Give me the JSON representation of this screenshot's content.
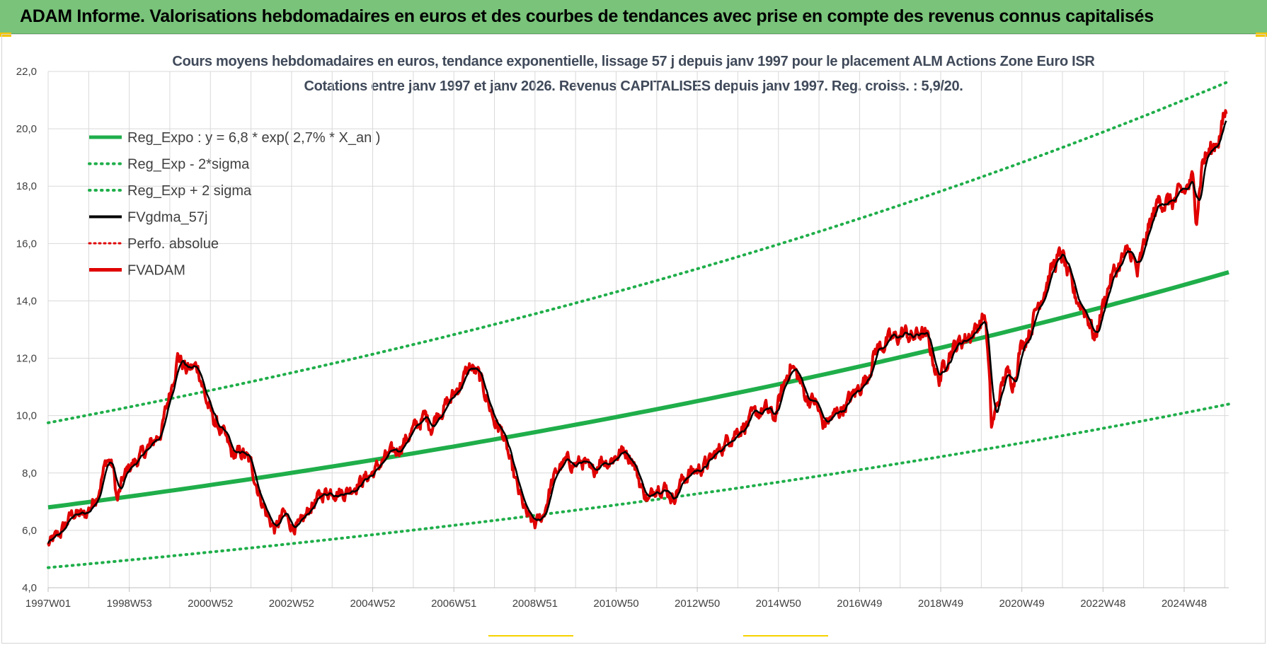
{
  "banner": {
    "title": "ADAM Informe. Valorisations hebdomadaires en euros et des courbes de tendances avec prise en compte des revenus connus capitalisés",
    "color": "#79c47a"
  },
  "chart_data": {
    "type": "line",
    "title_line1": "Cours moyens hebdomadaires en euros, tendance exponentielle, lissage 57 j depuis janv 1997 pour le placement ALM Actions Zone Euro ISR",
    "title_line2": "Cotations entre janv 1997 et janv 2026. Revenus CAPITALISES depuis janv 1997. Reg. croiss. : 5,9/20.",
    "ylim": [
      4,
      22
    ],
    "yticks": [
      "4,0",
      "6,0",
      "8,0",
      "10,0",
      "12,0",
      "14,0",
      "16,0",
      "18,0",
      "20,0",
      "22,0"
    ],
    "xlim": [
      1997.0,
      2026.1
    ],
    "xticks": [
      {
        "label": "1997W01",
        "year": 1997.0
      },
      {
        "label": "1998W53",
        "year": 1999.0
      },
      {
        "label": "2000W52",
        "year": 2001.0
      },
      {
        "label": "2002W52",
        "year": 2003.0
      },
      {
        "label": "2004W52",
        "year": 2005.0
      },
      {
        "label": "2006W51",
        "year": 2007.0
      },
      {
        "label": "2008W51",
        "year": 2009.0
      },
      {
        "label": "2010W50",
        "year": 2011.0
      },
      {
        "label": "2012W50",
        "year": 2013.0
      },
      {
        "label": "2014W50",
        "year": 2015.0
      },
      {
        "label": "2016W49",
        "year": 2017.0
      },
      {
        "label": "2018W49",
        "year": 2019.0
      },
      {
        "label": "2020W49",
        "year": 2021.0
      },
      {
        "label": "2022W48",
        "year": 2023.0
      },
      {
        "label": "2024W48",
        "year": 2025.0
      }
    ],
    "grid": true,
    "legend_position": "top-left",
    "regression": {
      "a": 6.8,
      "rate": 0.027
    },
    "series": [
      {
        "name": "Reg_Expo : y = 6,8 * exp( 2,7% *  X_an )",
        "color": "#1fae4a",
        "style": "solid-thick",
        "values": [
          [
            1997.0,
            6.8
          ],
          [
            2026.1,
            15.0
          ]
        ]
      },
      {
        "name": "Reg_Exp - 2*sigma",
        "color": "#1fae4a",
        "style": "dotted",
        "values": [
          [
            1997.0,
            4.7
          ],
          [
            2026.1,
            10.4
          ]
        ]
      },
      {
        "name": "Reg_Exp + 2 sigma",
        "color": "#1fae4a",
        "style": "dotted",
        "values": [
          [
            1997.0,
            9.75
          ],
          [
            2026.1,
            21.65
          ]
        ]
      },
      {
        "name": "FVgdma_57j",
        "color": "#000000",
        "style": "solid",
        "values": []
      },
      {
        "name": "Perfo. absolue",
        "color": "#e00000",
        "style": "dotted",
        "values": []
      },
      {
        "name": "FVADAM",
        "color": "#e00000",
        "style": "solid",
        "values": [
          [
            1997.0,
            5.5
          ],
          [
            1997.3,
            5.9
          ],
          [
            1997.6,
            6.6
          ],
          [
            1997.9,
            6.5
          ],
          [
            1998.2,
            7.2
          ],
          [
            1998.45,
            8.5
          ],
          [
            1998.6,
            8.2
          ],
          [
            1998.7,
            7.0
          ],
          [
            1998.85,
            7.8
          ],
          [
            1999.0,
            8.2
          ],
          [
            1999.3,
            8.6
          ],
          [
            1999.55,
            9.0
          ],
          [
            1999.8,
            9.5
          ],
          [
            2000.0,
            10.8
          ],
          [
            2000.2,
            12.1
          ],
          [
            2000.4,
            11.6
          ],
          [
            2000.7,
            11.7
          ],
          [
            2000.9,
            10.5
          ],
          [
            2001.1,
            9.8
          ],
          [
            2001.3,
            9.4
          ],
          [
            2001.55,
            8.6
          ],
          [
            2001.8,
            8.7
          ],
          [
            2002.0,
            8.3
          ],
          [
            2002.2,
            7.3
          ],
          [
            2002.4,
            6.5
          ],
          [
            2002.6,
            6.0
          ],
          [
            2002.8,
            6.6
          ],
          [
            2003.0,
            6.2
          ],
          [
            2003.2,
            6.1
          ],
          [
            2003.5,
            6.9
          ],
          [
            2003.8,
            7.3
          ],
          [
            2004.0,
            7.4
          ],
          [
            2004.3,
            7.3
          ],
          [
            2004.6,
            7.6
          ],
          [
            2005.0,
            8.0
          ],
          [
            2005.3,
            8.5
          ],
          [
            2005.6,
            8.8
          ],
          [
            2006.0,
            9.5
          ],
          [
            2006.3,
            10.0
          ],
          [
            2006.45,
            9.6
          ],
          [
            2006.6,
            10.1
          ],
          [
            2006.9,
            10.5
          ],
          [
            2007.2,
            11.2
          ],
          [
            2007.4,
            11.7
          ],
          [
            2007.6,
            11.4
          ],
          [
            2007.8,
            10.7
          ],
          [
            2008.0,
            9.8
          ],
          [
            2008.2,
            9.4
          ],
          [
            2008.4,
            8.3
          ],
          [
            2008.6,
            7.3
          ],
          [
            2008.8,
            6.5
          ],
          [
            2009.0,
            6.2
          ],
          [
            2009.2,
            6.5
          ],
          [
            2009.4,
            7.6
          ],
          [
            2009.6,
            8.2
          ],
          [
            2009.8,
            8.4
          ],
          [
            2010.0,
            8.3
          ],
          [
            2010.2,
            8.4
          ],
          [
            2010.4,
            7.9
          ],
          [
            2010.6,
            8.5
          ],
          [
            2010.8,
            8.4
          ],
          [
            2011.0,
            8.6
          ],
          [
            2011.2,
            8.8
          ],
          [
            2011.4,
            8.5
          ],
          [
            2011.6,
            7.6
          ],
          [
            2011.8,
            7.0
          ],
          [
            2012.0,
            7.6
          ],
          [
            2012.2,
            7.5
          ],
          [
            2012.4,
            7.1
          ],
          [
            2012.6,
            7.7
          ],
          [
            2012.8,
            8.0
          ],
          [
            2013.0,
            8.1
          ],
          [
            2013.3,
            8.4
          ],
          [
            2013.6,
            8.9
          ],
          [
            2013.9,
            9.4
          ],
          [
            2014.2,
            9.7
          ],
          [
            2014.5,
            10.1
          ],
          [
            2014.7,
            10.2
          ],
          [
            2014.9,
            9.9
          ],
          [
            2015.1,
            10.9
          ],
          [
            2015.3,
            11.8
          ],
          [
            2015.5,
            11.3
          ],
          [
            2015.7,
            10.6
          ],
          [
            2015.9,
            10.5
          ],
          [
            2016.1,
            9.7
          ],
          [
            2016.3,
            9.9
          ],
          [
            2016.6,
            10.3
          ],
          [
            2016.9,
            10.8
          ],
          [
            2017.2,
            11.4
          ],
          [
            2017.4,
            12.3
          ],
          [
            2017.7,
            12.6
          ],
          [
            2017.9,
            12.7
          ],
          [
            2018.1,
            12.9
          ],
          [
            2018.3,
            12.7
          ],
          [
            2018.5,
            12.9
          ],
          [
            2018.7,
            12.6
          ],
          [
            2018.95,
            11.2
          ],
          [
            2019.2,
            12.2
          ],
          [
            2019.5,
            12.6
          ],
          [
            2019.8,
            12.9
          ],
          [
            2020.1,
            13.5
          ],
          [
            2020.2,
            11.2
          ],
          [
            2020.25,
            9.6
          ],
          [
            2020.4,
            10.4
          ],
          [
            2020.6,
            11.5
          ],
          [
            2020.8,
            11.2
          ],
          [
            2020.95,
            12.3
          ],
          [
            2021.2,
            13.0
          ],
          [
            2021.4,
            13.9
          ],
          [
            2021.6,
            14.6
          ],
          [
            2021.8,
            15.3
          ],
          [
            2022.0,
            15.6
          ],
          [
            2022.15,
            14.8
          ],
          [
            2022.3,
            14.2
          ],
          [
            2022.5,
            13.8
          ],
          [
            2022.7,
            13.2
          ],
          [
            2022.8,
            12.6
          ],
          [
            2022.95,
            13.6
          ],
          [
            2023.2,
            14.8
          ],
          [
            2023.5,
            15.5
          ],
          [
            2023.7,
            15.7
          ],
          [
            2023.85,
            14.9
          ],
          [
            2024.1,
            16.4
          ],
          [
            2024.4,
            17.6
          ],
          [
            2024.6,
            17.4
          ],
          [
            2024.8,
            17.5
          ],
          [
            2025.0,
            17.8
          ],
          [
            2025.2,
            18.2
          ],
          [
            2025.3,
            17.0
          ],
          [
            2025.45,
            18.9
          ],
          [
            2025.7,
            19.3
          ],
          [
            2025.9,
            19.9
          ],
          [
            2026.05,
            20.7
          ]
        ]
      }
    ]
  }
}
